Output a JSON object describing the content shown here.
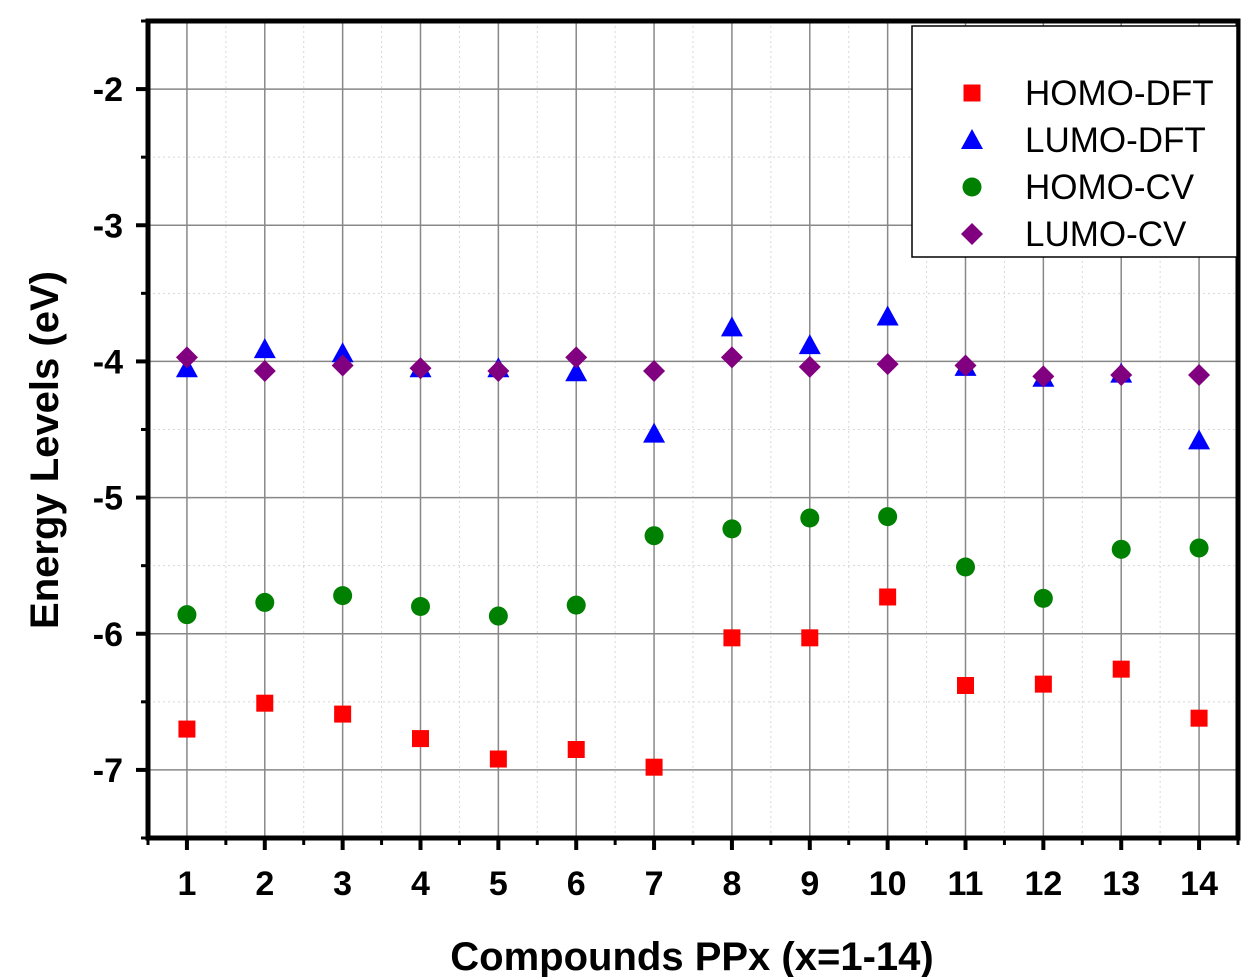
{
  "chart_data": {
    "type": "scatter",
    "title": "",
    "xlabel": "Compounds PPx (x=1-14)",
    "ylabel": "Energy Levels (eV)",
    "x": [
      1,
      2,
      3,
      4,
      5,
      6,
      7,
      8,
      9,
      10,
      11,
      12,
      13,
      14
    ],
    "xlim": [
      0.5,
      14.5
    ],
    "ylim": [
      -7.5,
      -1.5
    ],
    "x_ticks": [
      1,
      2,
      3,
      4,
      5,
      6,
      7,
      8,
      9,
      10,
      11,
      12,
      13,
      14
    ],
    "y_ticks": [
      -2,
      -3,
      -4,
      -5,
      -6,
      -7
    ],
    "grid": true,
    "legend_position": "top-right",
    "series": [
      {
        "name": "HOMO-DFT",
        "marker": "square",
        "color": "#ff0000",
        "values": [
          -6.7,
          -6.51,
          -6.59,
          -6.77,
          -6.92,
          -6.85,
          -6.98,
          -6.03,
          -6.03,
          -5.73,
          -6.38,
          -6.37,
          -6.26,
          -6.62
        ]
      },
      {
        "name": "LUMO-DFT",
        "marker": "triangle",
        "color": "#0000ff",
        "values": [
          -4.05,
          -3.91,
          -3.94,
          -4.05,
          -4.05,
          -4.08,
          -4.53,
          -3.75,
          -3.88,
          -3.67,
          -4.04,
          -4.12,
          -4.09,
          -4.58
        ]
      },
      {
        "name": "HOMO-CV",
        "marker": "circle",
        "color": "#008000",
        "values": [
          -5.86,
          -5.77,
          -5.72,
          -5.8,
          -5.87,
          -5.79,
          -5.28,
          -5.23,
          -5.15,
          -5.14,
          -5.51,
          -5.74,
          -5.38,
          -5.37
        ]
      },
      {
        "name": "LUMO-CV",
        "marker": "diamond",
        "color": "#800080",
        "values": [
          -3.97,
          -4.07,
          -4.03,
          -4.05,
          -4.07,
          -3.97,
          -4.07,
          -3.97,
          -4.04,
          -4.02,
          -4.03,
          -4.11,
          -4.1,
          -4.1
        ]
      }
    ]
  }
}
